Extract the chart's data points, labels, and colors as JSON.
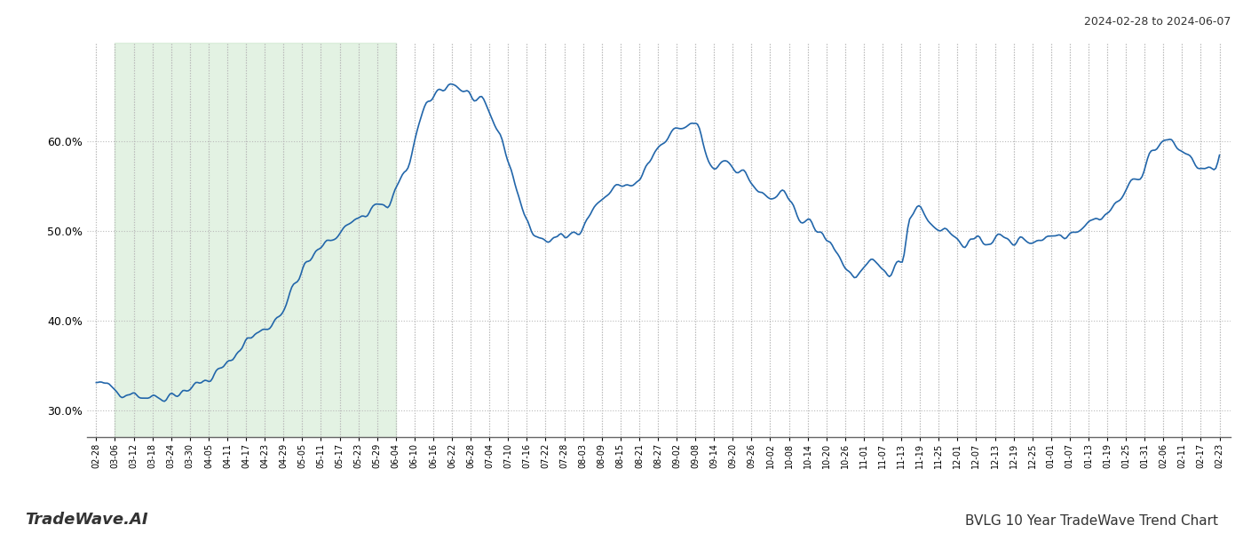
{
  "title_top_right": "2024-02-28 to 2024-06-07",
  "title_bottom_left": "TradeWave.AI",
  "title_bottom_right": "BVLG 10 Year TradeWave Trend Chart",
  "line_color": "#2266aa",
  "line_width": 1.2,
  "shaded_region_color": "#c8e6c9",
  "shaded_region_alpha": 0.5,
  "background_color": "#ffffff",
  "grid_color": "#bbbbbb",
  "grid_style": ":",
  "ylim": [
    0.27,
    0.71
  ],
  "yticks": [
    0.3,
    0.4,
    0.5,
    0.6
  ],
  "x_labels": [
    "02-28",
    "03-06",
    "03-12",
    "03-18",
    "03-24",
    "03-30",
    "04-05",
    "04-11",
    "04-17",
    "04-23",
    "04-29",
    "05-05",
    "05-11",
    "05-17",
    "05-23",
    "05-29",
    "06-04",
    "06-10",
    "06-16",
    "06-22",
    "06-28",
    "07-04",
    "07-10",
    "07-16",
    "07-22",
    "07-28",
    "08-03",
    "08-09",
    "08-15",
    "08-21",
    "08-27",
    "09-02",
    "09-08",
    "09-14",
    "09-20",
    "09-26",
    "10-02",
    "10-08",
    "10-14",
    "10-20",
    "10-26",
    "11-01",
    "11-07",
    "11-13",
    "11-19",
    "11-25",
    "12-01",
    "12-07",
    "12-13",
    "12-19",
    "12-25",
    "01-01",
    "01-07",
    "01-13",
    "01-19",
    "01-25",
    "01-31",
    "02-06",
    "02-11",
    "02-17",
    "02-23"
  ],
  "shaded_label_start": "03-06",
  "shaded_label_end": "06-04",
  "n_points": 610,
  "seed": 42
}
